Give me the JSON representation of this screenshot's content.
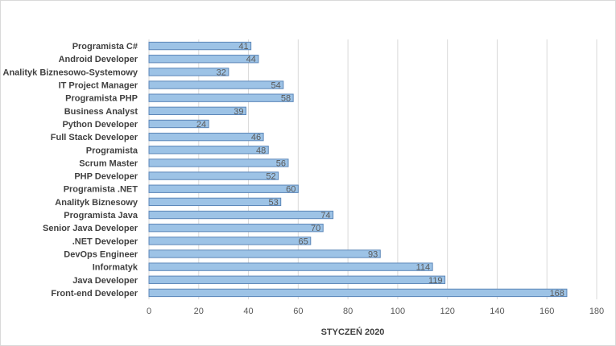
{
  "chart_data": {
    "type": "bar",
    "orientation": "horizontal",
    "categories": [
      "Programista C#",
      "Android Developer",
      "Analityk Biznesowo-Systemowy",
      "IT Project Manager",
      "Programista PHP",
      "Business Analyst",
      "Python Developer",
      "Full Stack Developer",
      "Programista",
      "Scrum Master",
      "PHP Developer",
      "Programista .NET",
      "Analityk Biznesowy",
      "Programista Java",
      "Senior Java Developer",
      ".NET Developer",
      "DevOps Engineer",
      "Informatyk",
      "Java Developer",
      "Front-end Developer"
    ],
    "values": [
      41,
      44,
      32,
      54,
      58,
      39,
      24,
      46,
      48,
      56,
      52,
      60,
      53,
      74,
      70,
      65,
      93,
      114,
      119,
      168
    ],
    "xlabel": "STYCZEŃ 2020",
    "ylabel": "",
    "title": "",
    "xlim": [
      0,
      180
    ],
    "xticks": [
      0,
      20,
      40,
      60,
      80,
      100,
      120,
      140,
      160,
      180
    ],
    "grid": "vertical",
    "legend": "none",
    "colors": {
      "bar_fill": "#9dc3e6",
      "bar_stroke": "#5b86b8",
      "grid": "#d9d9d9"
    }
  }
}
